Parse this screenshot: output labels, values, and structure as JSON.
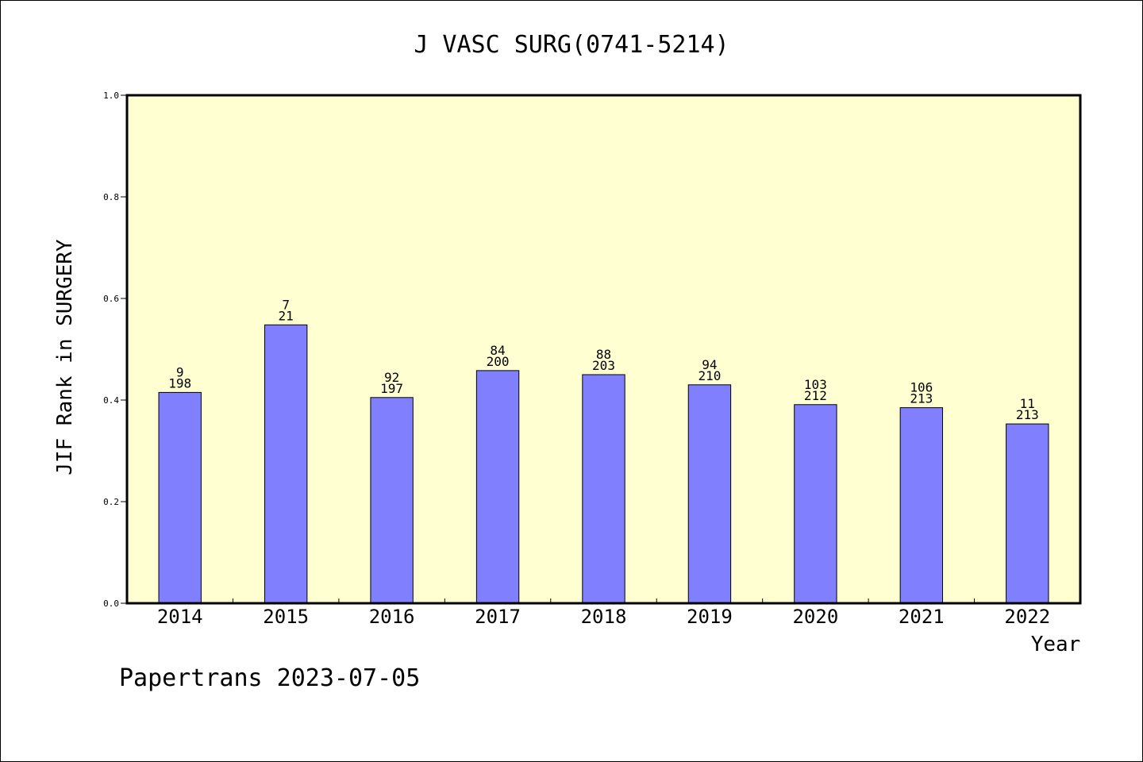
{
  "chart_data": {
    "type": "bar",
    "title": "J VASC SURG(0741-5214)",
    "xlabel": "Year",
    "ylabel": "JIF Rank in SURGERY",
    "ylim": [
      0,
      1.0
    ],
    "yticks": [
      "0.0",
      "0.2",
      "0.4",
      "0.6",
      "0.8",
      "1.0"
    ],
    "categories": [
      "2014",
      "2015",
      "2016",
      "2017",
      "2018",
      "2019",
      "2020",
      "2021",
      "2022"
    ],
    "values": [
      0.415,
      0.548,
      0.405,
      0.458,
      0.45,
      0.43,
      0.391,
      0.385,
      0.353
    ],
    "labels_top": [
      "9",
      "7",
      "92",
      "84",
      "88",
      "94",
      "103",
      "106",
      "11"
    ],
    "labels_bottom": [
      "198",
      "21",
      "197",
      "200",
      "203",
      "210",
      "212",
      "213",
      "213"
    ],
    "grid": false,
    "colors": {
      "plot_background": "#FFFFD2",
      "bar_fill": "#8080FF",
      "bar_stroke": "#000000"
    }
  },
  "footer": {
    "text": "Papertrans 2023-07-05"
  }
}
